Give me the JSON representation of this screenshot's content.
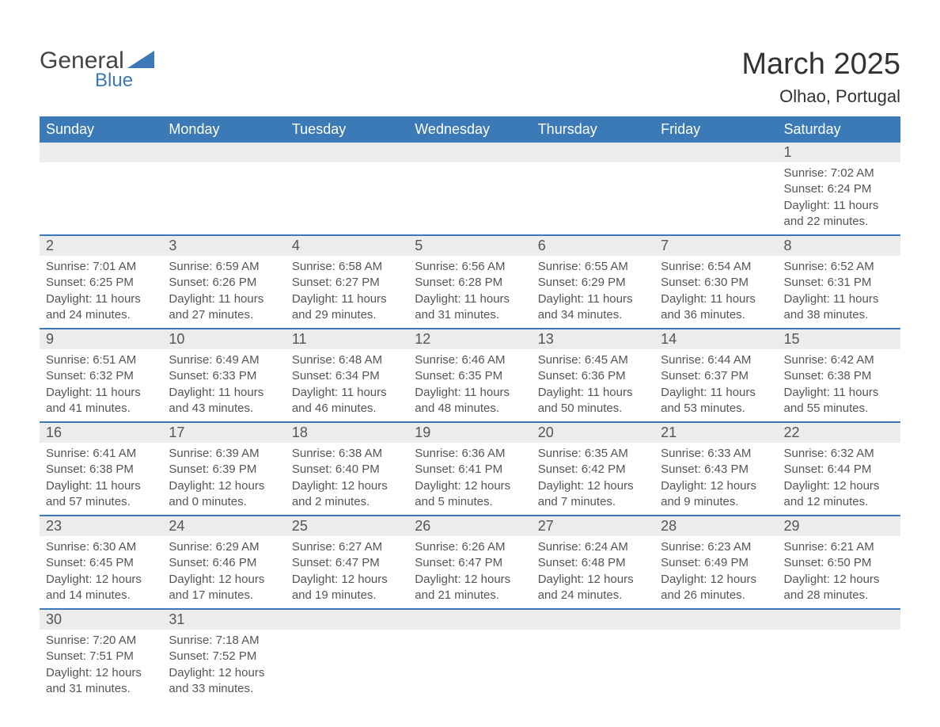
{
  "logo": {
    "text1": "General",
    "text2": "Blue",
    "shape_color": "#3b79b7"
  },
  "title": "March 2025",
  "location": "Olhao, Portugal",
  "colors": {
    "header_bg": "#3b79b7",
    "header_text": "#ffffff",
    "daynum_bg": "#ececec",
    "border": "#3b79b7",
    "text": "#555555",
    "bg": "#ffffff"
  },
  "day_headers": [
    "Sunday",
    "Monday",
    "Tuesday",
    "Wednesday",
    "Thursday",
    "Friday",
    "Saturday"
  ],
  "weeks": [
    [
      null,
      null,
      null,
      null,
      null,
      null,
      {
        "n": "1",
        "sr": "7:02 AM",
        "ss": "6:24 PM",
        "dl": "11 hours and 22 minutes."
      }
    ],
    [
      {
        "n": "2",
        "sr": "7:01 AM",
        "ss": "6:25 PM",
        "dl": "11 hours and 24 minutes."
      },
      {
        "n": "3",
        "sr": "6:59 AM",
        "ss": "6:26 PM",
        "dl": "11 hours and 27 minutes."
      },
      {
        "n": "4",
        "sr": "6:58 AM",
        "ss": "6:27 PM",
        "dl": "11 hours and 29 minutes."
      },
      {
        "n": "5",
        "sr": "6:56 AM",
        "ss": "6:28 PM",
        "dl": "11 hours and 31 minutes."
      },
      {
        "n": "6",
        "sr": "6:55 AM",
        "ss": "6:29 PM",
        "dl": "11 hours and 34 minutes."
      },
      {
        "n": "7",
        "sr": "6:54 AM",
        "ss": "6:30 PM",
        "dl": "11 hours and 36 minutes."
      },
      {
        "n": "8",
        "sr": "6:52 AM",
        "ss": "6:31 PM",
        "dl": "11 hours and 38 minutes."
      }
    ],
    [
      {
        "n": "9",
        "sr": "6:51 AM",
        "ss": "6:32 PM",
        "dl": "11 hours and 41 minutes."
      },
      {
        "n": "10",
        "sr": "6:49 AM",
        "ss": "6:33 PM",
        "dl": "11 hours and 43 minutes."
      },
      {
        "n": "11",
        "sr": "6:48 AM",
        "ss": "6:34 PM",
        "dl": "11 hours and 46 minutes."
      },
      {
        "n": "12",
        "sr": "6:46 AM",
        "ss": "6:35 PM",
        "dl": "11 hours and 48 minutes."
      },
      {
        "n": "13",
        "sr": "6:45 AM",
        "ss": "6:36 PM",
        "dl": "11 hours and 50 minutes."
      },
      {
        "n": "14",
        "sr": "6:44 AM",
        "ss": "6:37 PM",
        "dl": "11 hours and 53 minutes."
      },
      {
        "n": "15",
        "sr": "6:42 AM",
        "ss": "6:38 PM",
        "dl": "11 hours and 55 minutes."
      }
    ],
    [
      {
        "n": "16",
        "sr": "6:41 AM",
        "ss": "6:38 PM",
        "dl": "11 hours and 57 minutes."
      },
      {
        "n": "17",
        "sr": "6:39 AM",
        "ss": "6:39 PM",
        "dl": "12 hours and 0 minutes."
      },
      {
        "n": "18",
        "sr": "6:38 AM",
        "ss": "6:40 PM",
        "dl": "12 hours and 2 minutes."
      },
      {
        "n": "19",
        "sr": "6:36 AM",
        "ss": "6:41 PM",
        "dl": "12 hours and 5 minutes."
      },
      {
        "n": "20",
        "sr": "6:35 AM",
        "ss": "6:42 PM",
        "dl": "12 hours and 7 minutes."
      },
      {
        "n": "21",
        "sr": "6:33 AM",
        "ss": "6:43 PM",
        "dl": "12 hours and 9 minutes."
      },
      {
        "n": "22",
        "sr": "6:32 AM",
        "ss": "6:44 PM",
        "dl": "12 hours and 12 minutes."
      }
    ],
    [
      {
        "n": "23",
        "sr": "6:30 AM",
        "ss": "6:45 PM",
        "dl": "12 hours and 14 minutes."
      },
      {
        "n": "24",
        "sr": "6:29 AM",
        "ss": "6:46 PM",
        "dl": "12 hours and 17 minutes."
      },
      {
        "n": "25",
        "sr": "6:27 AM",
        "ss": "6:47 PM",
        "dl": "12 hours and 19 minutes."
      },
      {
        "n": "26",
        "sr": "6:26 AM",
        "ss": "6:47 PM",
        "dl": "12 hours and 21 minutes."
      },
      {
        "n": "27",
        "sr": "6:24 AM",
        "ss": "6:48 PM",
        "dl": "12 hours and 24 minutes."
      },
      {
        "n": "28",
        "sr": "6:23 AM",
        "ss": "6:49 PM",
        "dl": "12 hours and 26 minutes."
      },
      {
        "n": "29",
        "sr": "6:21 AM",
        "ss": "6:50 PM",
        "dl": "12 hours and 28 minutes."
      }
    ],
    [
      {
        "n": "30",
        "sr": "7:20 AM",
        "ss": "7:51 PM",
        "dl": "12 hours and 31 minutes."
      },
      {
        "n": "31",
        "sr": "7:18 AM",
        "ss": "7:52 PM",
        "dl": "12 hours and 33 minutes."
      },
      null,
      null,
      null,
      null,
      null
    ]
  ],
  "labels": {
    "sunrise_prefix": "Sunrise: ",
    "sunset_prefix": "Sunset: ",
    "daylight_prefix": "Daylight: "
  }
}
